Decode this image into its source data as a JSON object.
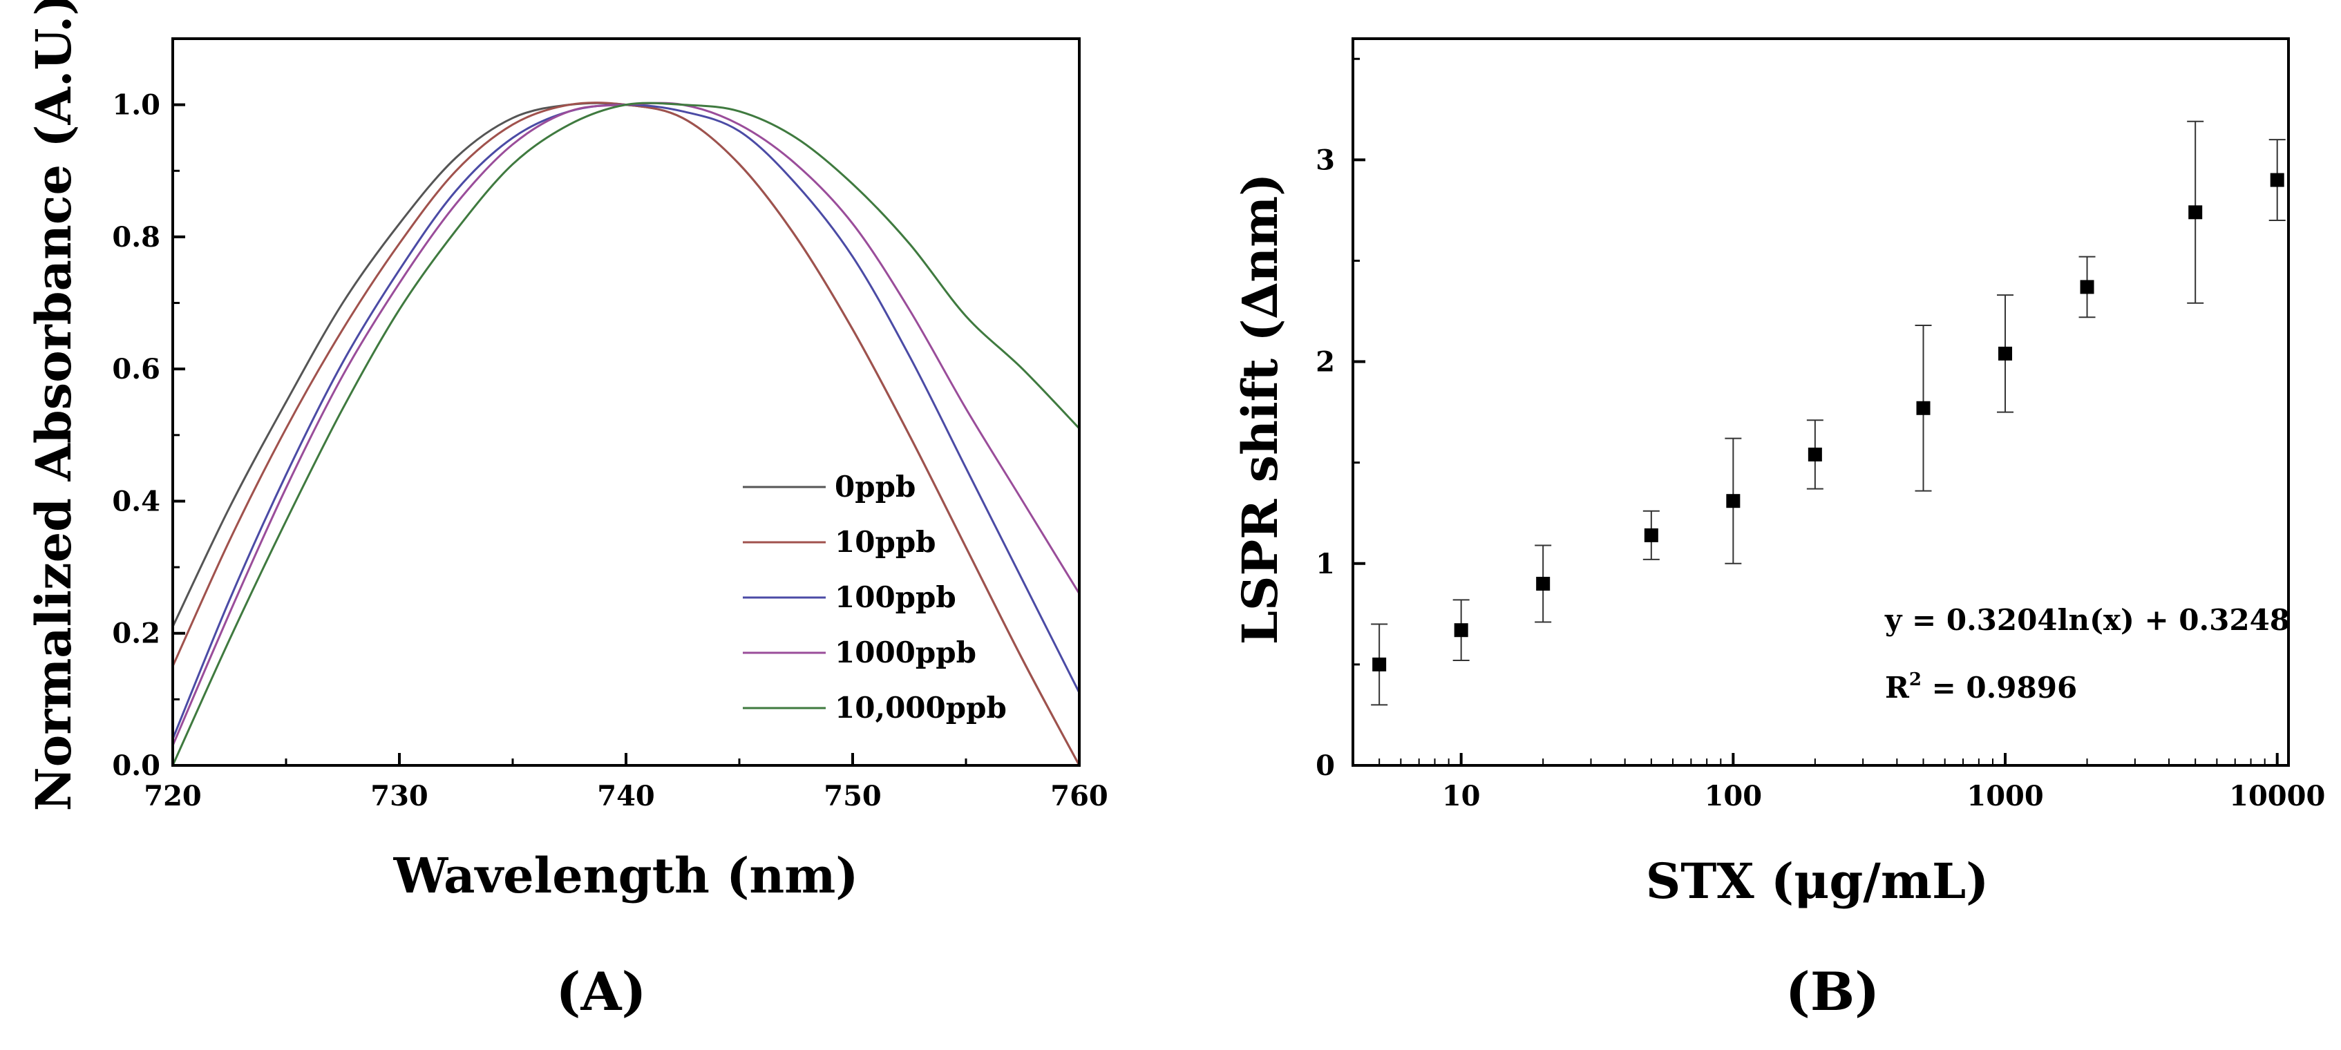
{
  "chart_data": [
    {
      "panel": "A",
      "type": "line",
      "panel_label": "(A)",
      "title": "",
      "xlabel": "Wavelength (nm)",
      "ylabel": "Normalized Absorbance (A.U.)",
      "xlim": [
        720,
        760
      ],
      "ylim": [
        0.0,
        1.1
      ],
      "xticks": [
        720,
        730,
        740,
        750,
        760
      ],
      "xtick_labels": [
        "720",
        "730",
        "740",
        "750",
        "760"
      ],
      "yticks": [
        0.0,
        0.2,
        0.4,
        0.6,
        0.8,
        1.0
      ],
      "ytick_labels": [
        "0.0",
        "0.2",
        "0.4",
        "0.6",
        "0.8",
        "1.0"
      ],
      "legend_position": "lower-right",
      "x": [
        720,
        722.5,
        725,
        727.5,
        730,
        732.5,
        735,
        737.5,
        740,
        742.5,
        745,
        747.5,
        750,
        752.5,
        755,
        757.5,
        760
      ],
      "series": [
        {
          "name": "0ppb",
          "color": "#555555",
          "values": [
            0.21,
            0.39,
            0.55,
            0.7,
            0.82,
            0.92,
            0.98,
            1.0,
            1.0,
            0.98,
            0.91,
            0.8,
            0.66,
            0.5,
            0.33,
            0.16,
            0.0
          ]
        },
        {
          "name": "10ppb",
          "color": "#a0524d",
          "values": [
            0.15,
            0.34,
            0.51,
            0.66,
            0.79,
            0.9,
            0.97,
            1.0,
            1.0,
            0.98,
            0.91,
            0.8,
            0.66,
            0.5,
            0.33,
            0.16,
            0.0
          ]
        },
        {
          "name": "100ppb",
          "color": "#4b4ba5",
          "values": [
            0.04,
            0.25,
            0.44,
            0.61,
            0.75,
            0.87,
            0.95,
            0.99,
            1.0,
            0.99,
            0.96,
            0.88,
            0.77,
            0.62,
            0.45,
            0.28,
            0.11
          ]
        },
        {
          "name": "1000ppb",
          "color": "#9a4d9a",
          "values": [
            0.03,
            0.23,
            0.42,
            0.59,
            0.73,
            0.85,
            0.94,
            0.99,
            1.0,
            1.0,
            0.97,
            0.91,
            0.82,
            0.69,
            0.54,
            0.4,
            0.26
          ]
        },
        {
          "name": "10,000ppb",
          "color": "#3f7a3f",
          "values": [
            0.0,
            0.19,
            0.37,
            0.54,
            0.69,
            0.81,
            0.91,
            0.97,
            1.0,
            1.0,
            0.99,
            0.95,
            0.88,
            0.79,
            0.68,
            0.6,
            0.51
          ]
        }
      ]
    },
    {
      "panel": "B",
      "type": "scatter",
      "panel_label": "(B)",
      "title": "",
      "xlabel": "STX (μg/mL)",
      "ylabel": "LSPR shift (∆nm)",
      "xscale": "log",
      "xlim": [
        4,
        11000
      ],
      "ylim": [
        0,
        3.6
      ],
      "xticks": [
        10,
        100,
        1000,
        10000
      ],
      "xtick_labels": [
        "10",
        "100",
        "1000",
        "10000"
      ],
      "yticks": [
        0,
        1,
        2,
        3
      ],
      "ytick_labels": [
        "0",
        "1",
        "2",
        "3"
      ],
      "annotations": {
        "equation": "y = 0.3204ln(x) + 0.3248",
        "r2_prefix": "R",
        "r2_sup": "2",
        "r2_value": " = 0.9896"
      },
      "points": [
        {
          "x": 5,
          "y": 0.5,
          "err": 0.2
        },
        {
          "x": 10,
          "y": 0.67,
          "err": 0.15
        },
        {
          "x": 20,
          "y": 0.9,
          "err": 0.19
        },
        {
          "x": 50,
          "y": 1.14,
          "err": 0.12
        },
        {
          "x": 100,
          "y": 1.31,
          "err": 0.31
        },
        {
          "x": 200,
          "y": 1.54,
          "err": 0.17
        },
        {
          "x": 500,
          "y": 1.77,
          "err": 0.41
        },
        {
          "x": 1000,
          "y": 2.04,
          "err": 0.29
        },
        {
          "x": 2000,
          "y": 2.37,
          "err": 0.15
        },
        {
          "x": 5000,
          "y": 2.74,
          "err": 0.45
        },
        {
          "x": 10000,
          "y": 2.9,
          "err": 0.2
        }
      ]
    }
  ]
}
